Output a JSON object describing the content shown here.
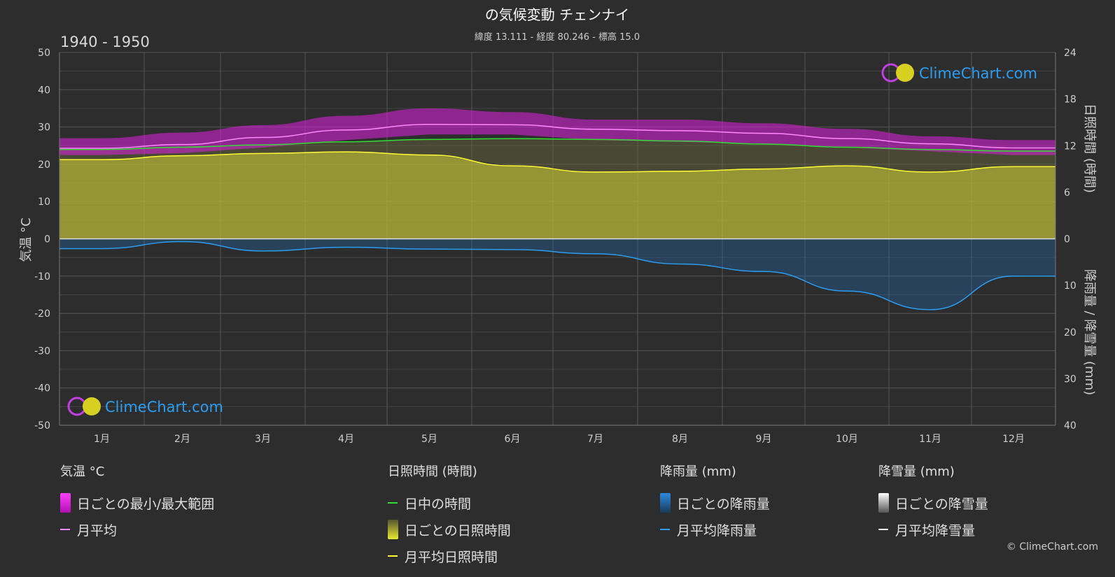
{
  "title": "の気候変動 チェンナイ",
  "subtitle": "緯度 13.111 - 経度 80.246 - 標高 15.0",
  "period": "1940 - 1950",
  "logo_text": "ClimeChart.com",
  "copyright": "© ClimeChart.com",
  "colors": {
    "background": "#2d2d2d",
    "temp_range": "#e020e0",
    "temp_avg": "#ff88ff",
    "daylight": "#33dd33",
    "sunshine_fill": "#b8b838",
    "sunshine_avg": "#ffff33",
    "rain_bar": "#1e6ab0",
    "rain_avg": "#2a9df4",
    "snow_avg": "#ffffff",
    "logo_blue": "#2a9df4"
  },
  "chart_data": {
    "type": "line",
    "months": [
      "1月",
      "2月",
      "3月",
      "4月",
      "5月",
      "6月",
      "7月",
      "8月",
      "9月",
      "10月",
      "11月",
      "12月"
    ],
    "y_left": {
      "label": "気温 °C",
      "ticks": [
        50,
        40,
        30,
        20,
        10,
        0,
        -10,
        -20,
        -30,
        -40,
        -50
      ],
      "range": [
        -50,
        50
      ]
    },
    "y_right_top": {
      "label": "日照時間 (時間)",
      "ticks": [
        24,
        18,
        12,
        6,
        0
      ],
      "range": [
        0,
        24
      ]
    },
    "y_right_bottom": {
      "label": "降雨量 / 降雪量 (mm)",
      "ticks": [
        0,
        10,
        20,
        30,
        40
      ],
      "range": [
        0,
        40
      ]
    },
    "series": [
      {
        "name": "月平均",
        "axis": "temperature_c",
        "values": [
          24.3,
          25.3,
          27.2,
          29.2,
          30.7,
          30.6,
          29.4,
          29.0,
          28.3,
          26.9,
          25.5,
          24.4
        ]
      },
      {
        "name": "日ごとの最小/最大範囲",
        "axis": "temperature_c",
        "min": [
          22.5,
          23.0,
          24.5,
          26.5,
          28.0,
          28.0,
          26.5,
          26.0,
          25.5,
          24.5,
          23.5,
          22.5
        ],
        "max": [
          27.0,
          28.5,
          30.5,
          33.0,
          35.0,
          34.0,
          32.0,
          32.0,
          31.0,
          29.5,
          27.5,
          26.5
        ]
      },
      {
        "name": "日中の時間",
        "axis": "hours",
        "values": [
          11.5,
          11.8,
          12.1,
          12.5,
          12.8,
          12.9,
          12.8,
          12.6,
          12.2,
          11.8,
          11.5,
          11.3
        ]
      },
      {
        "name": "月平均日照時間",
        "axis": "hours",
        "values": [
          10.2,
          10.7,
          11.0,
          11.2,
          10.8,
          9.4,
          8.6,
          8.7,
          9.0,
          9.4,
          8.6,
          9.3
        ]
      },
      {
        "name": "月平均降雨量",
        "axis": "precip_mm",
        "values": [
          2.1,
          0.6,
          2.6,
          1.8,
          2.2,
          2.3,
          3.2,
          5.4,
          7.0,
          11.2,
          15.2,
          8.0
        ]
      },
      {
        "name": "月平均降雪量",
        "axis": "precip_mm",
        "values": [
          0,
          0,
          0,
          0,
          0,
          0,
          0,
          0,
          0,
          0,
          0,
          0
        ]
      }
    ]
  },
  "legend": {
    "temperature": {
      "title": "気温 °C",
      "items": [
        "日ごとの最小/最大範囲",
        "月平均"
      ]
    },
    "sunshine": {
      "title": "日照時間 (時間)",
      "items": [
        "日中の時間",
        "日ごとの日照時間",
        "月平均日照時間"
      ]
    },
    "rain": {
      "title": "降雨量 (mm)",
      "items": [
        "日ごとの降雨量",
        "月平均降雨量"
      ]
    },
    "snow": {
      "title": "降雪量 (mm)",
      "items": [
        "日ごとの降雪量",
        "月平均降雪量"
      ]
    }
  }
}
